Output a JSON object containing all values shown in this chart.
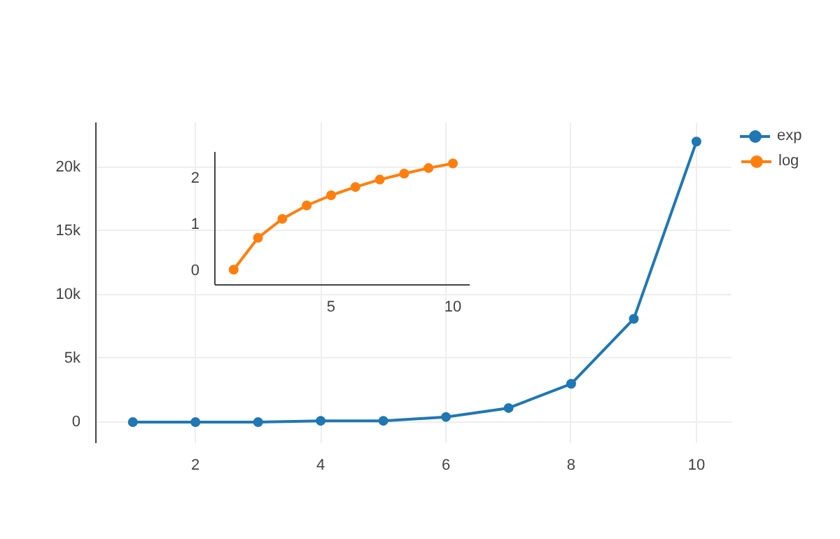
{
  "chart_data": [
    {
      "type": "line",
      "x": [
        1,
        2,
        3,
        4,
        5,
        6,
        7,
        8,
        9,
        10
      ],
      "series": [
        {
          "name": "exp",
          "color": "#1f77b4",
          "values": [
            0,
            0,
            0,
            100,
            100,
            400,
            1100,
            3000,
            8100,
            22000
          ]
        }
      ],
      "xlim": [
        0.41,
        10.56
      ],
      "ylim": [
        -1650,
        23500
      ],
      "xticks": [
        2,
        4,
        6,
        8,
        10
      ],
      "yticks": [
        0,
        {
          "value": 5000,
          "label": "5k"
        },
        {
          "value": 10000,
          "label": "10k"
        },
        {
          "value": 15000,
          "label": "15k"
        },
        {
          "value": 20000,
          "label": "20k"
        }
      ],
      "grid": true,
      "legend": "top right",
      "marker": "circle",
      "line_style": "solid"
    },
    {
      "type": "line",
      "x": [
        1,
        2,
        3,
        4,
        5,
        6,
        7,
        8,
        9,
        10
      ],
      "series": [
        {
          "name": "log",
          "color": "#ff7f0e",
          "values": [
            0,
            0.69,
            1.1,
            1.39,
            1.61,
            1.79,
            1.95,
            2.08,
            2.2,
            2.3
          ]
        }
      ],
      "xlim": [
        0.23,
        10.69
      ],
      "ylim": [
        -0.33,
        2.55
      ],
      "xticks": [
        5,
        10
      ],
      "yticks": [
        0,
        1,
        2
      ],
      "grid": false,
      "legend": "top right",
      "marker": "circle",
      "line_style": "solid"
    }
  ]
}
